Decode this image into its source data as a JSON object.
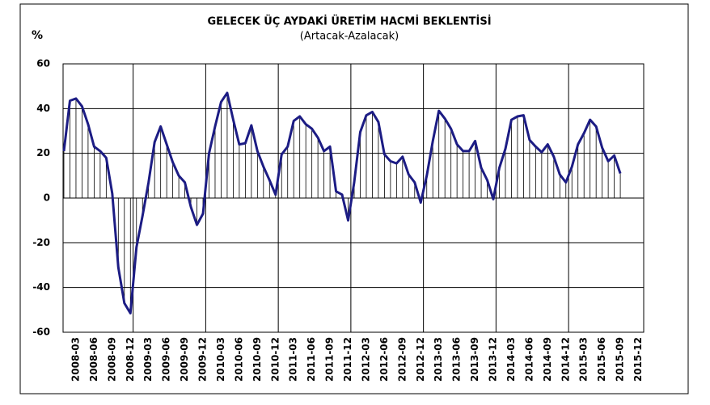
{
  "chart_data": {
    "type": "line",
    "title": "GELECEK ÜÇ AYDAKİ ÜRETİM HACMİ BEKLENTİSİ",
    "subtitle": "(Artacak-Azalacak)",
    "y_label": "%",
    "categories": [
      null,
      null,
      "2008-03",
      null,
      null,
      "2008-06",
      null,
      null,
      "2008-09",
      null,
      null,
      "2008-12",
      null,
      null,
      "2009-03",
      null,
      null,
      "2009-06",
      null,
      null,
      "2009-09",
      null,
      null,
      "2009-12",
      null,
      null,
      "2010-03",
      null,
      null,
      "2010-06",
      null,
      null,
      "2010-09",
      null,
      null,
      "2010-12",
      null,
      null,
      "2011-03",
      null,
      null,
      "2011-06",
      null,
      null,
      "2011-09",
      null,
      null,
      "2011-12",
      null,
      null,
      "2012-03",
      null,
      null,
      "2012-06",
      null,
      null,
      "2012-09",
      null,
      null,
      "2012-12",
      null,
      null,
      "2013-03",
      null,
      null,
      "2013-06",
      null,
      null,
      "2013-09",
      null,
      null,
      "2013-12",
      null,
      null,
      "2014-03",
      null,
      null,
      "2014-06",
      null,
      null,
      "2014-09",
      null,
      null,
      "2014-12",
      null,
      null,
      "2015-03",
      null,
      null,
      "2015-06",
      null,
      null,
      "2015-09",
      null,
      null,
      "2015-12"
    ],
    "values": [
      21,
      43.5,
      44.5,
      41,
      33,
      23,
      21,
      18,
      2,
      -31,
      -47,
      -51.5,
      -22,
      -8,
      7,
      25,
      32,
      24,
      16,
      10,
      7,
      -4,
      -12,
      -7,
      20,
      32,
      43,
      47,
      35,
      24,
      24.5,
      32.5,
      21,
      14,
      8,
      1.5,
      19.5,
      23,
      34.5,
      36.5,
      33,
      31,
      27,
      21,
      23,
      3,
      1.5,
      -10,
      7,
      29.5,
      37,
      38.5,
      34,
      19.5,
      16.5,
      15.5,
      18.5,
      10.5,
      7,
      -2,
      10,
      25.5,
      39,
      35.5,
      31,
      24,
      21,
      21,
      25.5,
      13.5,
      8,
      -0.5,
      13.5,
      22,
      35,
      36.5,
      37,
      26,
      23,
      20.5,
      24,
      18.5,
      10.5,
      7,
      14,
      24,
      29,
      35,
      32,
      22.5,
      16.5,
      19,
      11,
      null,
      null,
      null
    ],
    "color": "#1c1c84",
    "ylim": [
      -60,
      60
    ],
    "yticks": [
      -60,
      -40,
      -20,
      0,
      20,
      40,
      60
    ],
    "grid": true
  }
}
